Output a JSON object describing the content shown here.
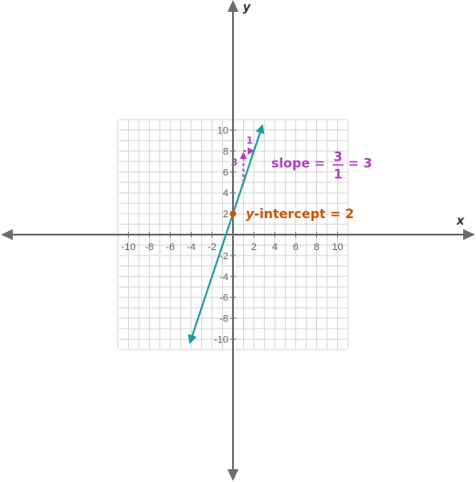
{
  "chart_data": {
    "type": "line",
    "xlabel": "x",
    "ylabel": "y",
    "xlim": [
      -10,
      10
    ],
    "ylim": [
      -10,
      10
    ],
    "grid": true,
    "x_ticks": [
      -10,
      -8,
      -6,
      -4,
      -2,
      2,
      4,
      6,
      8,
      10
    ],
    "y_ticks": [
      -10,
      -8,
      -6,
      -4,
      -2,
      2,
      4,
      6,
      8,
      10
    ],
    "series": [
      {
        "x": [
          -4.1,
          2.8
        ],
        "y": [
          -10.3,
          10.4
        ],
        "color": "#1a9b9b"
      }
    ],
    "slope_triangle": {
      "from": [
        1,
        5
      ],
      "rise": 3,
      "run": 1,
      "rise_label": "3",
      "run_label": "1",
      "color": "#b13fc1"
    },
    "intercept_point": {
      "x": 0,
      "y": 2,
      "color": "#cc5500"
    },
    "annotations": {
      "slope": {
        "prefix": "slope = ",
        "numerator": "3",
        "denominator": "1",
        "suffix": "= 3"
      },
      "intercept": {
        "var": "y",
        "rest": "-intercept = 2"
      }
    },
    "colors": {
      "grid": "#d6d6d6",
      "axis": "#6b6b6b",
      "line": "#1a9b9b",
      "slope": "#b13fc1",
      "intercept": "#cc5500"
    }
  }
}
